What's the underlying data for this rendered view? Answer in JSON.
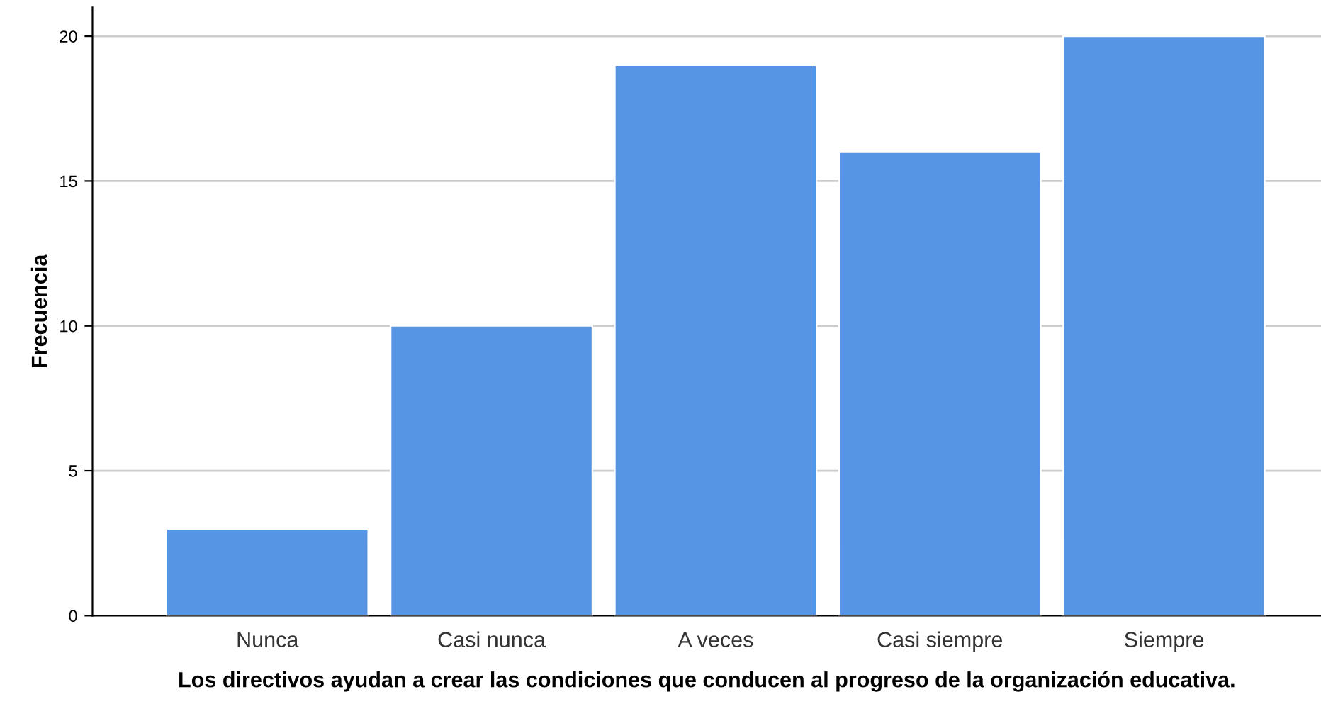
{
  "chart_data": {
    "type": "bar",
    "categories": [
      "Nunca",
      "Casi nunca",
      "A veces",
      "Casi siempre",
      "Siempre"
    ],
    "values": [
      3,
      10,
      19,
      16,
      20
    ],
    "color": "#5694e4",
    "xlabel": "Los directivos ayudan a crear las condiciones que conducen al progreso de la organización educativa.",
    "ylabel": "Frecuencia",
    "ylim": [
      0,
      21
    ],
    "yticks": [
      0,
      5,
      10,
      15,
      20
    ],
    "grid": "y",
    "legend": false
  }
}
